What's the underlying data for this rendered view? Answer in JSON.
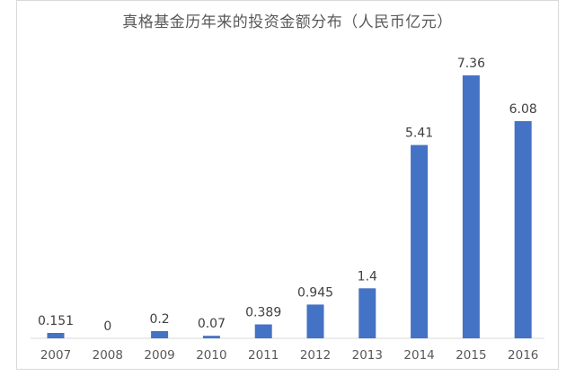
{
  "chart_data": {
    "type": "bar",
    "title": "真格基金历年来的投资金额分布（人民币亿元）",
    "categories": [
      "2007",
      "2008",
      "2009",
      "2010",
      "2011",
      "2012",
      "2013",
      "2014",
      "2015",
      "2016"
    ],
    "values": [
      0.151,
      0,
      0.2,
      0.07,
      0.389,
      0.945,
      1.4,
      5.41,
      7.36,
      6.08
    ],
    "value_labels": [
      "0.151",
      "0",
      "0.2",
      "0.07",
      "0.389",
      "0.945",
      "1.4",
      "5.41",
      "7.36",
      "6.08"
    ],
    "xlabel": "",
    "ylabel": "",
    "ylim": [
      0,
      7.36
    ],
    "bar_color": "#4472c4",
    "grid": false,
    "legend": "none"
  }
}
